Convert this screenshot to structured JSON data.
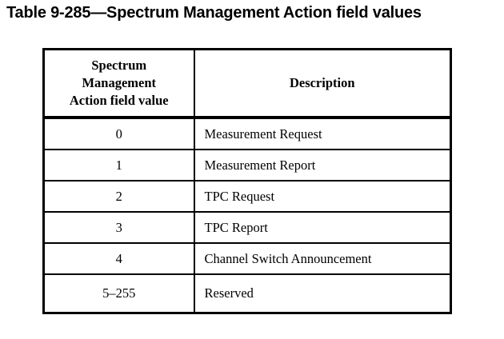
{
  "page": {
    "background": "#ffffff",
    "text_color": "#000000",
    "border_color": "#000000"
  },
  "caption": "Table 9-285—Spectrum Management Action field values",
  "table": {
    "header": {
      "action_field": "Spectrum\nManagement\nAction field value",
      "description": "Description"
    },
    "rows": [
      {
        "value": "0",
        "description": "Measurement Request"
      },
      {
        "value": "1",
        "description": "Measurement Report"
      },
      {
        "value": "2",
        "description": "TPC Request"
      },
      {
        "value": "3",
        "description": "TPC Report"
      },
      {
        "value": "4",
        "description": "Channel Switch Announcement"
      },
      {
        "value": "5–255",
        "description": "Reserved"
      }
    ]
  }
}
